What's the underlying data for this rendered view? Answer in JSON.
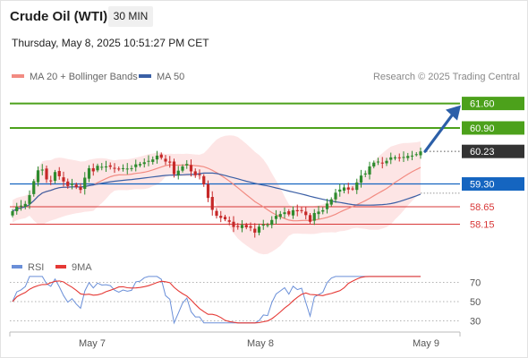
{
  "header": {
    "title": "Crude Oil (WTI)",
    "timeframe": "30 MIN",
    "datetime": "Thursday, May 8, 2025 10:51:27 PM CET"
  },
  "legend": {
    "ma20_label": "MA 20 + Bollinger Bands",
    "ma50_label": "MA 50",
    "credit": "Research © 2025 Trading Central"
  },
  "rsi_legend": {
    "rsi_label": "RSI",
    "ma9_label": "9MA"
  },
  "colors": {
    "up": "#2e8b2e",
    "down": "#c62828",
    "resistance": "#4ca11b",
    "support_blue": "#1565c0",
    "support_red": "#d83838",
    "ma20": "#f28b82",
    "ma50": "#3a5fa5",
    "bollinger_fill": "#fde0e0",
    "arrow": "#2c5fa8",
    "rsi_line": "#6a8fd8",
    "rsi_ma": "#e53935"
  },
  "levels": [
    {
      "price": 61.6,
      "label": "61.60",
      "kind": "resistance"
    },
    {
      "price": 60.9,
      "label": "60.90",
      "kind": "resistance"
    },
    {
      "price": 60.23,
      "label": "60.23",
      "kind": "last"
    },
    {
      "price": 59.3,
      "label": "59.30",
      "kind": "pivot"
    },
    {
      "price": 58.65,
      "label": "58.65",
      "kind": "support"
    },
    {
      "price": 58.15,
      "label": "58.15",
      "kind": "support"
    }
  ],
  "rsi_levels": [
    "70",
    "50",
    "30"
  ],
  "x_labels": [
    "May 7",
    "May 8",
    "May 9"
  ],
  "chart_data": {
    "type": "candlestick",
    "title": "Crude Oil (WTI)",
    "timeframe": "30 MIN",
    "x_ticks": [
      "May 7",
      "May 8",
      "May 9"
    ],
    "close": [
      58.52,
      58.65,
      58.68,
      58.73,
      58.98,
      59.38,
      59.69,
      59.71,
      59.43,
      59.39,
      59.64,
      59.52,
      59.37,
      59.24,
      59.31,
      59.21,
      59.13,
      59.48,
      59.75,
      59.66,
      59.82,
      59.79,
      59.8,
      59.79,
      59.74,
      59.72,
      59.75,
      59.74,
      59.75,
      59.86,
      59.87,
      59.92,
      59.96,
      60.0,
      60.11,
      60.05,
      59.94,
      59.91,
      59.58,
      59.68,
      59.8,
      59.87,
      59.66,
      59.55,
      59.55,
      59.29,
      58.9,
      58.56,
      58.39,
      58.33,
      58.29,
      58.22,
      58.07,
      58.07,
      58.13,
      58.06,
      58.05,
      57.91,
      58.08,
      58.14,
      58.13,
      58.27,
      58.39,
      58.44,
      58.49,
      58.43,
      58.55,
      58.52,
      58.54,
      58.41,
      58.22,
      58.47,
      58.51,
      58.55,
      58.74,
      58.86,
      59.05,
      59.14,
      59.2,
      59.14,
      59.16,
      59.34,
      59.54,
      59.6,
      59.8,
      59.91,
      59.94,
      59.89,
      59.96,
      60.06,
      60.06,
      60.04,
      60.07,
      60.1,
      60.11,
      60.15,
      60.23
    ],
    "overlays": [
      "MA 20 + Bollinger Bands",
      "MA 50"
    ],
    "levels": [
      61.6,
      60.9,
      60.23,
      59.3,
      58.65,
      58.15
    ],
    "projection": {
      "from": 60.23,
      "to": 61.6
    },
    "rsi": {
      "levels": [
        70,
        50,
        30
      ],
      "series": [
        "RSI",
        "9MA"
      ]
    }
  }
}
